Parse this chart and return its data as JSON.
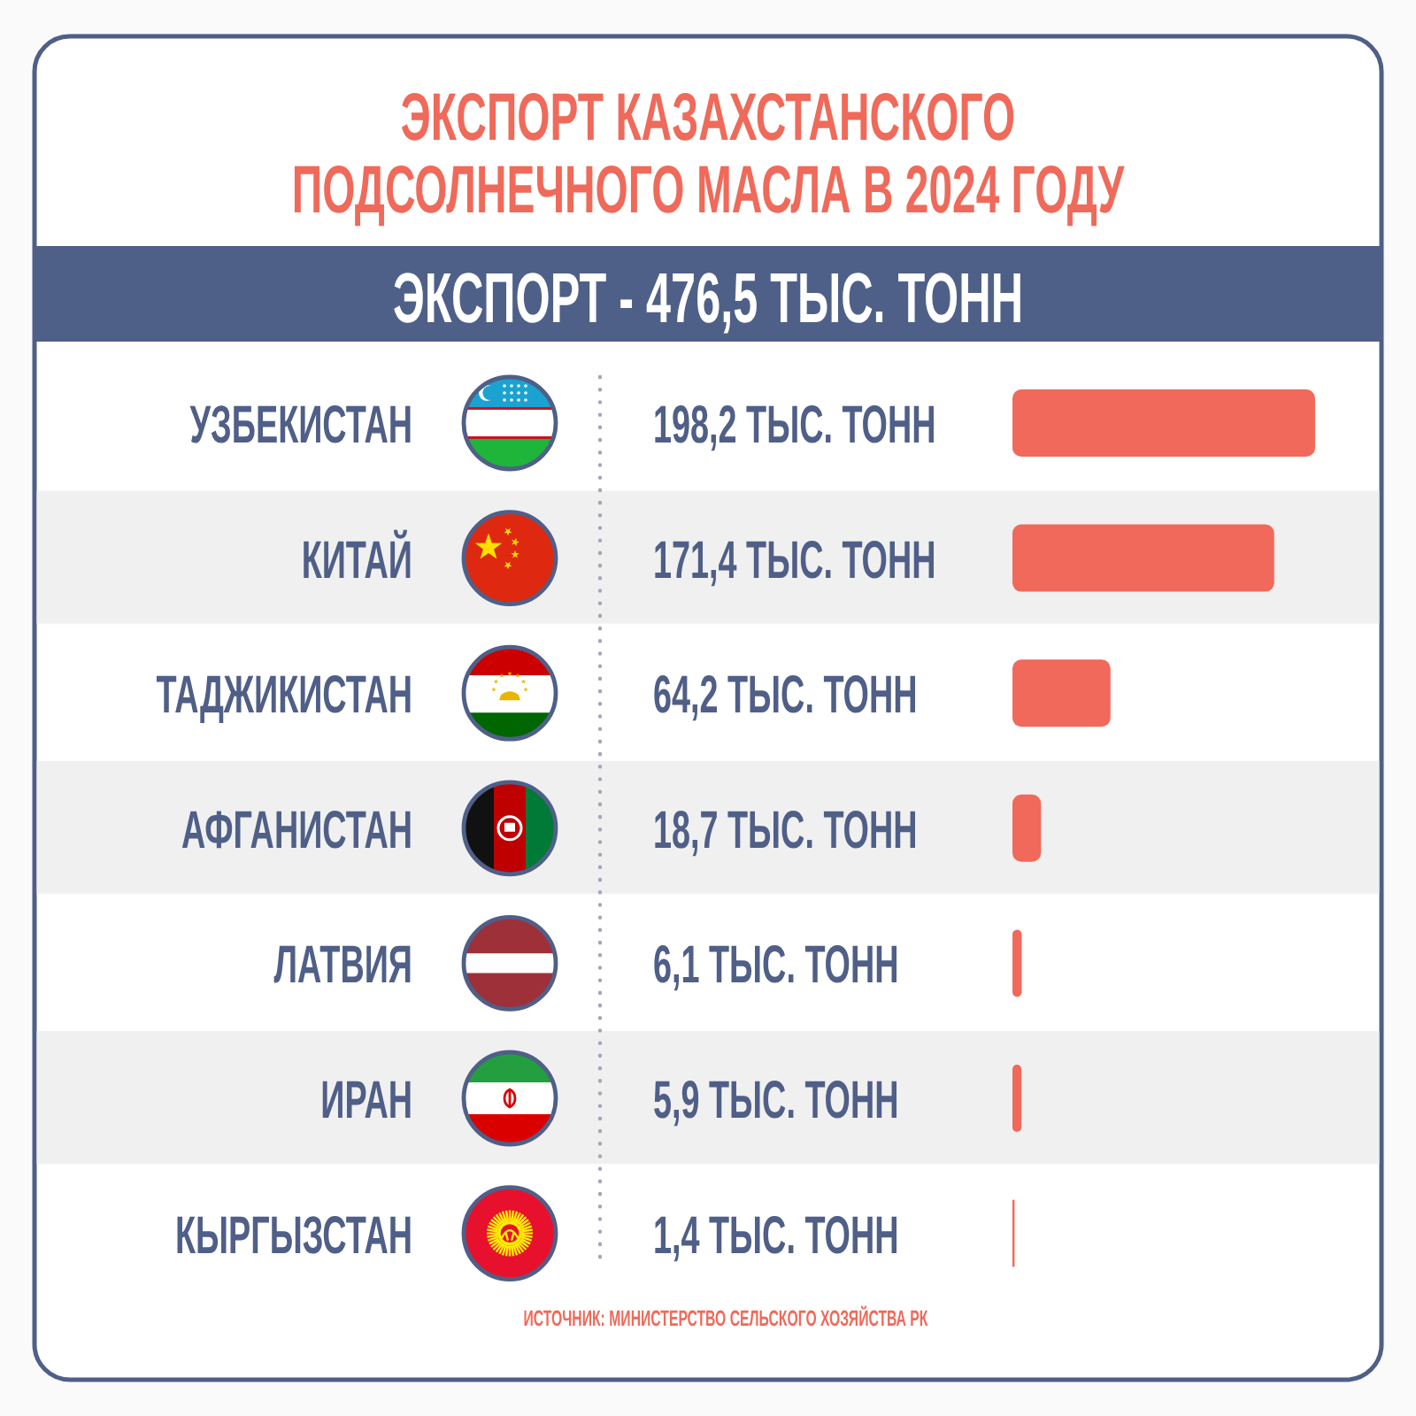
{
  "chart_data": {
    "type": "bar",
    "orientation": "horizontal",
    "title": "ЭКСПОРТ КАЗАХСТАНСКОГО\nПОДСОЛНЕЧНОГО МАСЛА В 2024 ГОДУ",
    "subtitle": "ЭКСПОРТ - 476,5 ТЫС. ТОНН",
    "categories": [
      "УЗБЕКИСТАН",
      "КИТАЙ",
      "ТАДЖИКИСТАН",
      "АФГАНИСТАН",
      "ЛАТВИЯ",
      "ИРАН",
      "КЫРГЫЗСТАН"
    ],
    "values": [
      198.2,
      171.4,
      64.2,
      18.7,
      6.1,
      5.9,
      1.4
    ],
    "value_labels": [
      "198,2 ТЫС. ТОНН",
      "171,4 ТЫС. ТОНН",
      "64,2 ТЫС. ТОНН",
      "18,7 ТЫС. ТОНН",
      "6,1 ТЫС. ТОНН",
      "5,9 ТЫС. ТОНН",
      "1,4 ТЫС. ТОНН"
    ],
    "color": "#f0695a",
    "annotations": [
      "ИСТОЧНИК: МИНИСТЕРСТВО СЕЛЬСКОГО ХОЗЯЙСТВА РК"
    ]
  }
}
